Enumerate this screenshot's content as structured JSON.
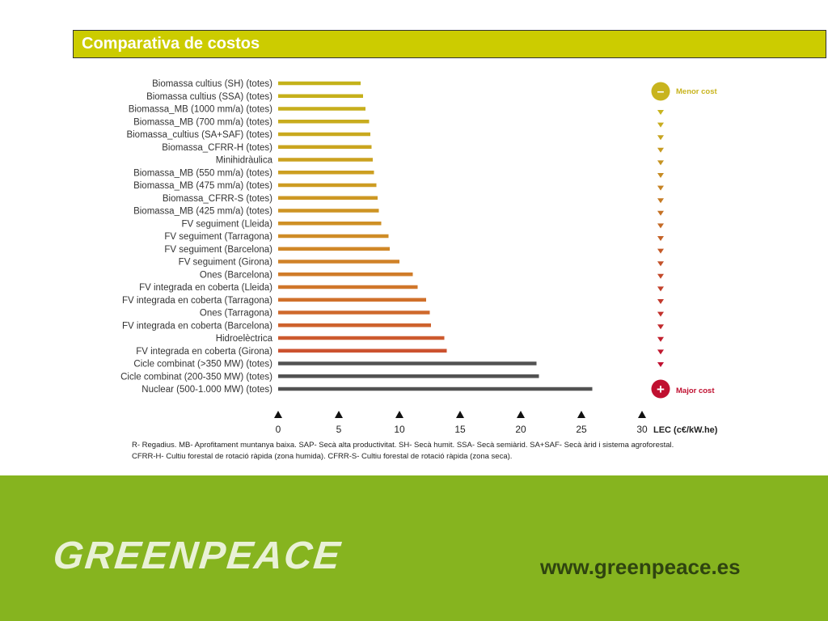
{
  "title": "Comparativa de costos",
  "chart_data": {
    "type": "bar",
    "orientation": "horizontal",
    "categories": [
      "Biomassa cultius (SH) (totes)",
      "Biomassa cultius (SSA) (totes)",
      "Biomassa_MB (1000 mm/a) (totes)",
      "Biomassa_MB (700 mm/a) (totes)",
      "Biomassa_cultius (SA+SAF) (totes)",
      "Biomassa_CFRR-H (totes)",
      "Minihidràulica",
      "Biomassa_MB (550 mm/a) (totes)",
      "Biomassa_MB (475 mm/a) (totes)",
      "Biomassa_CFRR-S (totes)",
      "Biomassa_MB (425 mm/a) (totes)",
      "FV seguiment (Lleida)",
      "FV seguiment (Tarragona)",
      "FV seguiment (Barcelona)",
      "FV seguiment (Girona)",
      "Ones (Barcelona)",
      "FV integrada en coberta (Lleida)",
      "FV integrada en coberta (Tarragona)",
      "Ones (Tarragona)",
      "FV integrada en coberta (Barcelona)",
      "Hidroelèctrica",
      "FV integrada en coberta (Girona)",
      "Cicle combinat (>350 MW) (totes)",
      "Cicle combinat (200-350 MW) (totes)",
      "Nuclear (500-1.000 MW) (totes)"
    ],
    "values": [
      6.8,
      7.0,
      7.2,
      7.5,
      7.6,
      7.7,
      7.8,
      7.9,
      8.1,
      8.2,
      8.3,
      8.5,
      9.1,
      9.2,
      10.0,
      11.1,
      11.5,
      12.2,
      12.5,
      12.6,
      13.7,
      13.9,
      21.3,
      21.5,
      25.9
    ],
    "bar_colors": [
      "#c4b21a",
      "#c6b01b",
      "#c7ae1c",
      "#c8ac1d",
      "#c9a91e",
      "#caa51f",
      "#cba220",
      "#cc9f21",
      "#cd9c22",
      "#cd9823",
      "#ce9424",
      "#cf9025",
      "#cf8c26",
      "#d08727",
      "#d08228",
      "#d07c29",
      "#d0762a",
      "#d0702b",
      "#cf692c",
      "#ce622d",
      "#cd5a2e",
      "#cc522f",
      "#525252",
      "#525252",
      "#525252"
    ],
    "xticks": [
      0,
      5,
      10,
      15,
      20,
      25,
      30
    ],
    "xlim": [
      0,
      30
    ],
    "xlabel": "LEC (c€/kW.he)",
    "ylabel": "",
    "scale": {
      "top_label": "Menor cost",
      "bottom_label": "Major cost",
      "top_symbol": "–",
      "bottom_symbol": "+",
      "top_color": "#c8b41e",
      "bottom_color": "#c01030"
    }
  },
  "footnote": {
    "line1": "R- Regadius. MB- Aprofitament muntanya baixa. SAP- Secà alta productivitat. SH- Secà humit. SSA- Secà semiàrid. SA+SAF- Secà àrid i sistema agroforestal.",
    "line2": "CFRR-H- Cultiu forestal de rotació ràpida (zona humida). CFRR-S- Cultiu forestal de rotació ràpida (zona seca)."
  },
  "footer": {
    "logo": "GREENPEACE",
    "url": "www.greenpeace.es",
    "bg_color": "#86b41f"
  }
}
